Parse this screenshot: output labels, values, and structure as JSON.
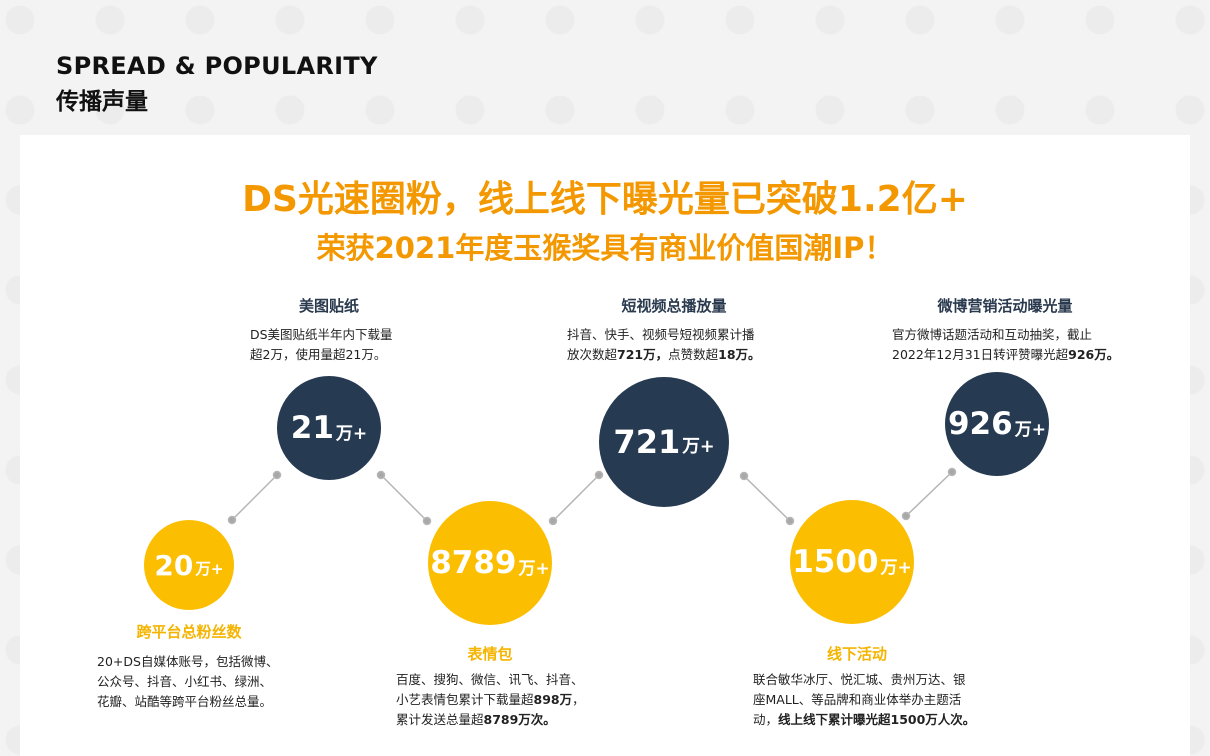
{
  "header": {
    "en": "SPREAD & POPULARITY",
    "cn": "传播声量"
  },
  "headline": {
    "line1": "DS光速圈粉，线上线下曝光量已突破1.2亿+",
    "line2": "荣获2021年度玉猴奖具有商业价值国潮IP！"
  },
  "colors": {
    "accent": "#f39800",
    "yellow": "#fbbe00",
    "navy": "#263a52"
  },
  "items": [
    {
      "value": "20",
      "unit": "万+",
      "title": "跨平台总粉丝数",
      "lines": [
        [
          "20+DS自媒体账号，包括微博、"
        ],
        [
          "公众号、抖音、小红书、绿洲、"
        ],
        [
          "花瓣、站酷等跨平台粉丝总量。"
        ]
      ]
    },
    {
      "value": "21",
      "unit": "万+",
      "title": "美图贴纸",
      "lines": [
        [
          "DS美图贴纸半年内下载量"
        ],
        [
          "超2万，使用量超21万。"
        ]
      ]
    },
    {
      "value": "8789",
      "unit": "万+",
      "title": "表情包",
      "lines": [
        [
          "百度、搜狗、微信、讯飞、抖音、"
        ],
        [
          "小艺表情包累计下载量超",
          "898万",
          "，"
        ],
        [
          "累计发送总量超",
          "8789万次。"
        ]
      ]
    },
    {
      "value": "721",
      "unit": "万+",
      "title": "短视频总播放量",
      "lines": [
        [
          "抖音、快手、视频号短视频累计播"
        ],
        [
          "放次数超",
          "721万，",
          "点赞数超",
          "18万。"
        ]
      ]
    },
    {
      "value": "1500",
      "unit": "万+",
      "title": "线下活动",
      "lines": [
        [
          "联合敏华冰厅、悦汇城、贵州万达、银"
        ],
        [
          "座MALL、等品牌和商业体举办主题活"
        ],
        [
          "动，",
          "线上线下累计曝光超1500万人次。"
        ]
      ]
    },
    {
      "value": "926",
      "unit": "万+",
      "title": "微博营销活动曝光量",
      "lines": [
        [
          "官方微博话题活动和互动抽奖，截止"
        ],
        [
          "2022年12月31日转评赞曝光超",
          "926万。"
        ]
      ]
    }
  ]
}
